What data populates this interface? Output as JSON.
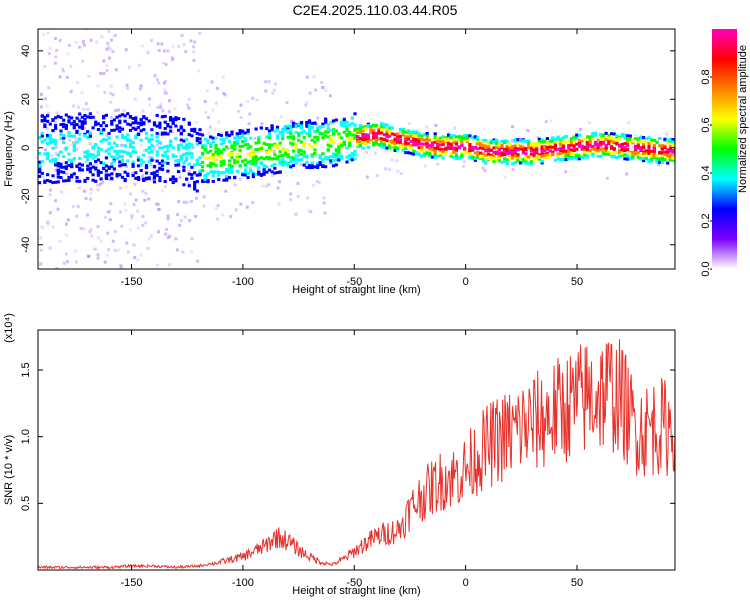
{
  "title": "C2E4.2025.110.03.44.R05",
  "chart_data": [
    {
      "type": "heatmap",
      "title": "C2E4.2025.110.03.44.R05",
      "xlabel": "Height of straight line (km)",
      "ylabel": "Frequency (Hz)",
      "xlim": [
        -192,
        94
      ],
      "ylim": [
        -50,
        49
      ],
      "xticks": [
        -150,
        -100,
        -50,
        0,
        50
      ],
      "xtick_labels": [
        "-150",
        "-100",
        "-50",
        "0",
        "50"
      ],
      "yticks": [
        -40,
        -20,
        0,
        20,
        40
      ],
      "ytick_labels": [
        "-40",
        "-20",
        "0",
        "20",
        "40"
      ],
      "colorbar": {
        "label": "Normalized spectral amplitude",
        "range": [
          0,
          1
        ],
        "ticks": [
          0.0,
          0.2,
          0.4,
          0.6,
          0.8
        ],
        "tick_labels": [
          "0.0",
          "0.2",
          "0.4",
          "0.6",
          "0.8"
        ],
        "colors": [
          "#ffffff",
          "#7b00ff",
          "#0000ff",
          "#00ffff",
          "#00ff00",
          "#ffff00",
          "#ff8000",
          "#ff0000",
          "#ff00c0"
        ]
      },
      "ridge": {
        "x": [
          -192,
          -160,
          -130,
          -120,
          -100,
          -80,
          -60,
          -50,
          -40,
          -30,
          -20,
          -10,
          0,
          10,
          20,
          30,
          40,
          50,
          60,
          70,
          80,
          94
        ],
        "y": [
          0,
          1,
          0,
          -4,
          -2,
          1,
          3,
          5,
          6,
          4,
          2,
          1,
          1,
          -1,
          -1,
          -1,
          0,
          1,
          2,
          1,
          0,
          -1
        ]
      }
    },
    {
      "type": "line",
      "xlabel": "Height of straight line (km)",
      "ylabel": "SNR (10 * v/v)",
      "scale_label": "(x10⁴)",
      "xlim": [
        -192,
        94
      ],
      "ylim": [
        0,
        1.8
      ],
      "xticks": [
        -150,
        -100,
        -50,
        0,
        50
      ],
      "xtick_labels": [
        "-150",
        "-100",
        "-50",
        "0",
        "50"
      ],
      "yticks": [
        0.5,
        1.0,
        1.5
      ],
      "ytick_labels": [
        "0.5",
        "1.0",
        "1.5"
      ],
      "series": [
        {
          "name": "SNR",
          "color": "#e8312b",
          "x": [
            -192,
            -180,
            -170,
            -160,
            -150,
            -140,
            -130,
            -120,
            -110,
            -100,
            -90,
            -85,
            -80,
            -75,
            -70,
            -65,
            -60,
            -55,
            -50,
            -45,
            -40,
            -35,
            -30,
            -25,
            -20,
            -15,
            -10,
            -5,
            0,
            5,
            10,
            15,
            20,
            25,
            30,
            35,
            40,
            45,
            50,
            55,
            60,
            65,
            70,
            75,
            80,
            85,
            90,
            94
          ],
          "y": [
            0.02,
            0.02,
            0.02,
            0.02,
            0.03,
            0.03,
            0.02,
            0.03,
            0.06,
            0.1,
            0.18,
            0.25,
            0.22,
            0.15,
            0.1,
            0.06,
            0.04,
            0.08,
            0.14,
            0.2,
            0.25,
            0.28,
            0.3,
            0.45,
            0.55,
            0.62,
            0.68,
            0.7,
            0.75,
            0.85,
            0.93,
            0.98,
            1.02,
            1.07,
            1.1,
            1.13,
            1.18,
            1.22,
            1.26,
            1.3,
            1.32,
            1.35,
            1.28,
            1.1,
            1.05,
            1.08,
            1.07,
            1.1
          ]
        }
      ]
    }
  ]
}
